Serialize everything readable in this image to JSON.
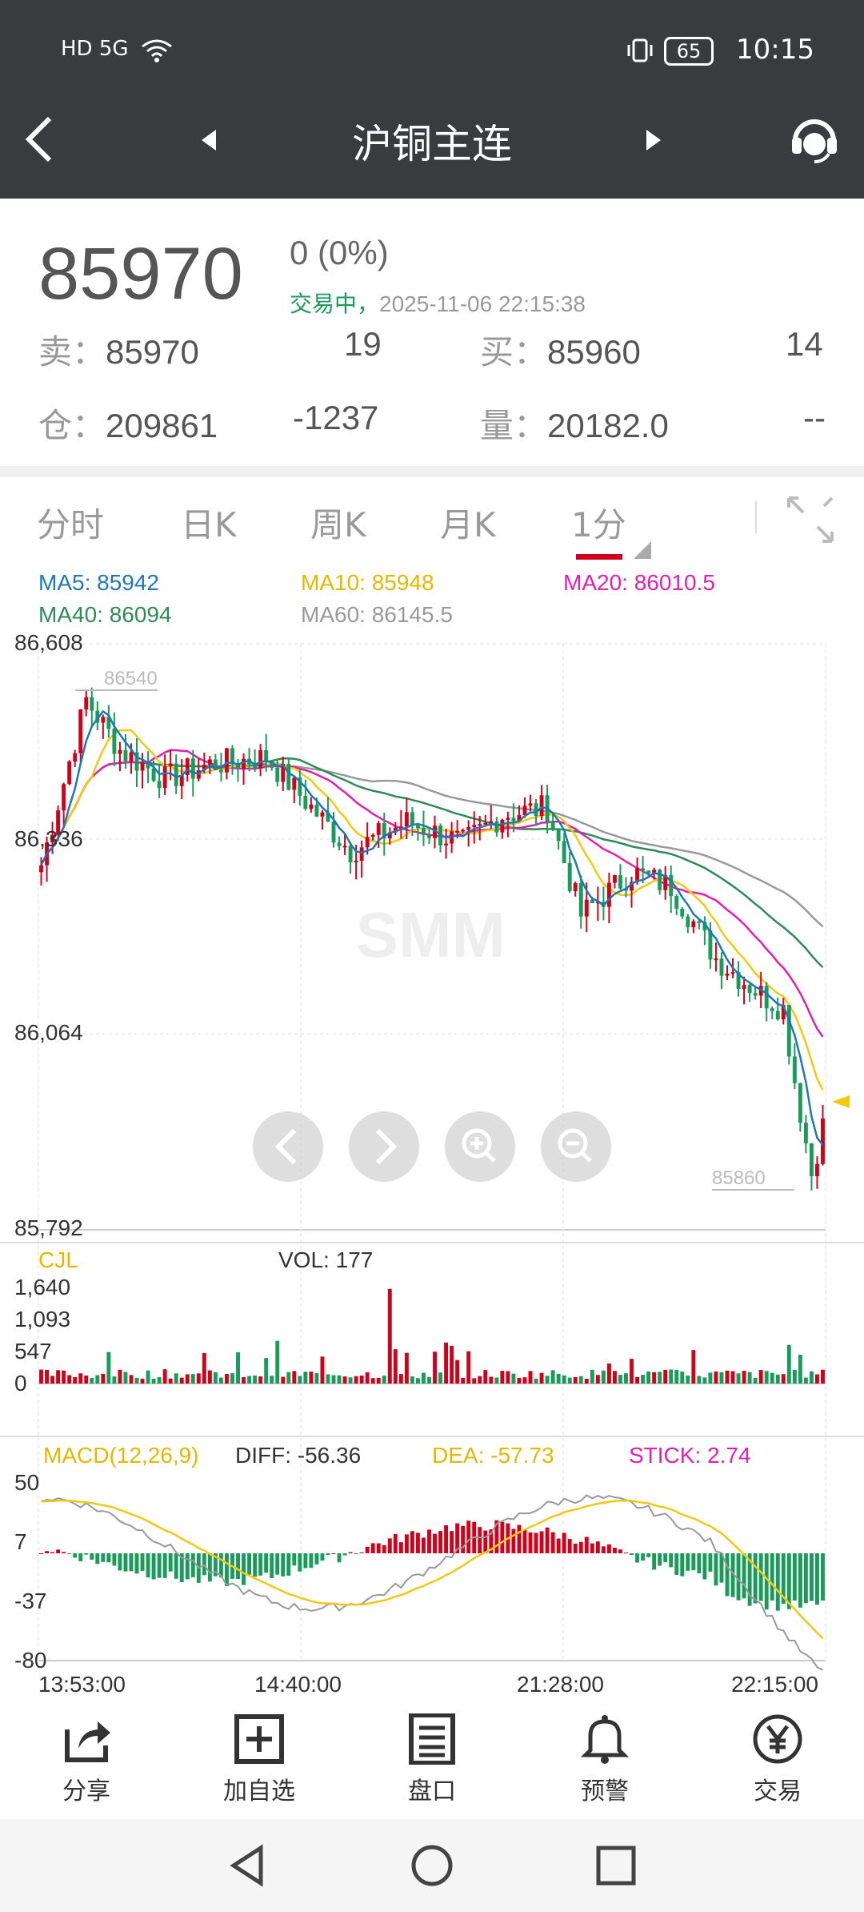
{
  "status_bar": {
    "network": "HD 5G",
    "battery": "65",
    "time": "10:15"
  },
  "header": {
    "title": "沪铜主连"
  },
  "quote": {
    "price": "85970",
    "change": "0  (0%)",
    "status": "交易中，",
    "datetime": "2025-11-06 22:15:38",
    "sell_label": "卖：",
    "sell_price": "85970",
    "sell_vol": "19",
    "buy_label": "买：",
    "buy_price": "85960",
    "buy_vol": "14",
    "oi_label": "仓：",
    "oi": "209861",
    "oi_change": "-1237",
    "vol_label": "量：",
    "volume": "20182.0",
    "vol_change": "--"
  },
  "tabs": [
    "分时",
    "日K",
    "周K",
    "月K",
    "1分"
  ],
  "active_tab": "1分",
  "ma": {
    "ma5": "MA5: 85942",
    "ma10": "MA10: 85948",
    "ma20": "MA20: 86010.5",
    "ma40": "MA40: 86094",
    "ma60": "MA60: 86145.5"
  },
  "colors": {
    "up": "#d0021b",
    "down": "#1a9b5b",
    "ma5": "#1f77b4",
    "ma10": "#f2c811",
    "ma20": "#e020b0",
    "ma40": "#2e8b57",
    "ma60": "#999999"
  },
  "price_axis": [
    "86,608",
    "86,336",
    "86,064",
    "85,792"
  ],
  "price_marks": {
    "high": "86540",
    "low": "85860"
  },
  "volume_panel": {
    "name": "CJL",
    "vol_text": "VOL: 177",
    "axis": [
      "1,640",
      "1,093",
      "547",
      "0"
    ]
  },
  "macd_panel": {
    "name": "MACD(12,26,9)",
    "diff": "DIFF: -56.36",
    "dea": "DEA: -57.73",
    "stick": "STICK: 2.74",
    "axis": [
      "50",
      "7",
      "-37",
      "-80"
    ]
  },
  "time_axis": [
    "13:53:00",
    "14:40:00",
    "21:28:00",
    "22:15:00"
  ],
  "toolbar": [
    {
      "label": "分享",
      "icon": "share-icon"
    },
    {
      "label": "加自选",
      "icon": "add-favorite-icon"
    },
    {
      "label": "盘口",
      "icon": "order-book-icon"
    },
    {
      "label": "预警",
      "icon": "bell-icon"
    },
    {
      "label": "交易",
      "icon": "yuan-icon"
    }
  ],
  "watermark": "SMM"
}
